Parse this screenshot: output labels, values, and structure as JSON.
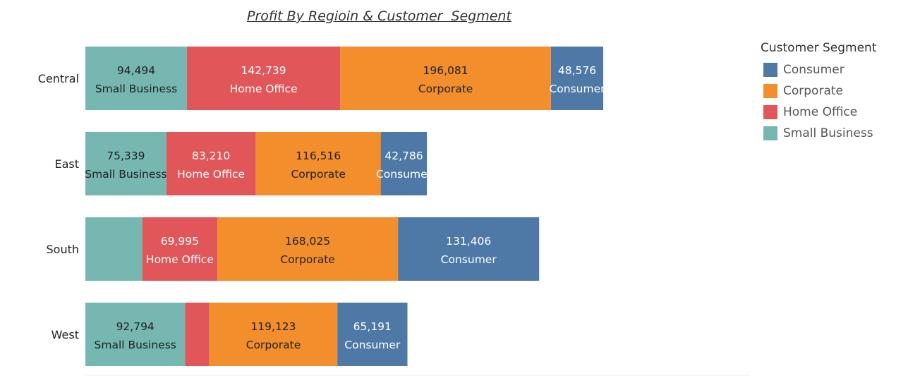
{
  "chart_data": {
    "type": "bar",
    "orientation": "horizontal",
    "stacked": true,
    "title": "Profit By Regioin & Customer  Segment",
    "xlabel": "",
    "ylabel": "",
    "grid": false,
    "legend_position": "right",
    "xlim": [
      0,
      650000
    ],
    "categories": [
      "Central",
      "East",
      "South",
      "West"
    ],
    "series": [
      {
        "name": "Small Business",
        "color": "#76b7b2",
        "label_color": "#222222",
        "values": [
          94494,
          75339,
          52900,
          92794
        ],
        "value_labels": [
          "94,494",
          "75,339",
          "",
          "92,794"
        ],
        "segment_labels": [
          "Small Business",
          "Small Business",
          "",
          "Small Business"
        ]
      },
      {
        "name": "Home Office",
        "color": "#e15759",
        "label_color": "#ffffff",
        "values": [
          142739,
          83210,
          69995,
          22600
        ],
        "value_labels": [
          "142,739",
          "83,210",
          "69,995",
          ""
        ],
        "segment_labels": [
          "Home Office",
          "Home Office",
          "Home Office",
          ""
        ]
      },
      {
        "name": "Corporate",
        "color": "#f28e2b",
        "label_color": "#222222",
        "values": [
          196081,
          116516,
          168025,
          119123
        ],
        "value_labels": [
          "196,081",
          "116,516",
          "168,025",
          "119,123"
        ],
        "segment_labels": [
          "Corporate",
          "Corporate",
          "Corporate",
          "Corporate"
        ]
      },
      {
        "name": "Consumer",
        "color": "#4e79a7",
        "label_color": "#ffffff",
        "values": [
          48576,
          42786,
          131406,
          65191
        ],
        "value_labels": [
          "48,576",
          "42,786",
          "131,406",
          "65,191"
        ],
        "segment_labels": [
          "Consumer",
          "Consumer",
          "Consumer",
          "Consumer"
        ]
      }
    ]
  },
  "legend": {
    "title": "Customer Segment",
    "items": [
      {
        "label": "Consumer",
        "color": "#4e79a7"
      },
      {
        "label": "Corporate",
        "color": "#f28e2b"
      },
      {
        "label": "Home Office",
        "color": "#e15759"
      },
      {
        "label": "Small Business",
        "color": "#76b7b2"
      }
    ]
  }
}
